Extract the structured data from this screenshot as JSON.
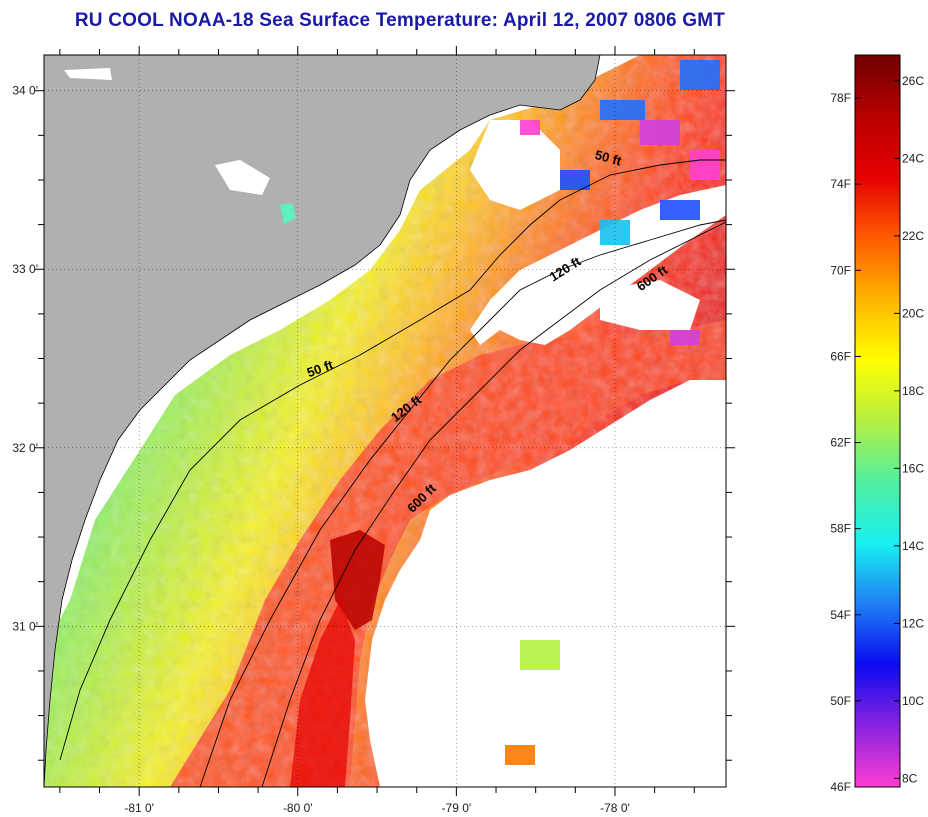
{
  "title": "RU COOL  NOAA-18  Sea Surface Temperature:  April 12, 2007 0806 GMT",
  "map": {
    "lon_range": [
      -81.6,
      -77.3
    ],
    "lat_range": [
      30.1,
      34.2
    ],
    "lat_ticks": [
      {
        "value": 34,
        "label": "34 0'"
      },
      {
        "value": 33,
        "label": "33 0'"
      },
      {
        "value": 32,
        "label": "32 0'"
      },
      {
        "value": 31,
        "label": "31 0'"
      }
    ],
    "lon_ticks": [
      {
        "value": -81,
        "label": "-81 0'"
      },
      {
        "value": -80,
        "label": "-80 0'"
      },
      {
        "value": -79,
        "label": "-79 0'"
      },
      {
        "value": -78,
        "label": "-78 0'"
      }
    ],
    "land_color": "#b0b0b0",
    "cloud_color": "#ffffff",
    "contours": [
      {
        "label": "50 ft",
        "placements": [
          {
            "lon": -79.85,
            "lat": 32.42,
            "rot": -20
          },
          {
            "lon": -78.05,
            "lat": 33.6,
            "rot": 15
          }
        ]
      },
      {
        "label": "120 ft",
        "placements": [
          {
            "lon": -79.3,
            "lat": 32.2,
            "rot": -38
          },
          {
            "lon": -78.3,
            "lat": 32.98,
            "rot": -32
          }
        ]
      },
      {
        "label": "600 ft",
        "placements": [
          {
            "lon": -79.2,
            "lat": 31.7,
            "rot": -45
          },
          {
            "lon": -77.75,
            "lat": 32.93,
            "rot": -35
          }
        ]
      }
    ]
  },
  "colorbar": {
    "stops": [
      "#ff3cd2",
      "#8a24e0",
      "#0a0af0",
      "#1f7ff5",
      "#18f0f0",
      "#50f0a0",
      "#b5f040",
      "#ffff00",
      "#ffb400",
      "#ff5a00",
      "#e60000",
      "#b80000",
      "#700000"
    ],
    "fahrenheit_labels": [
      "78F",
      "74F",
      "70F",
      "66F",
      "62F",
      "58F",
      "54F",
      "50F",
      "46F"
    ],
    "celsius_labels": [
      "26C",
      "24C",
      "22C",
      "20C",
      "18C",
      "16C",
      "14C",
      "12C",
      "10C",
      "8C"
    ]
  }
}
